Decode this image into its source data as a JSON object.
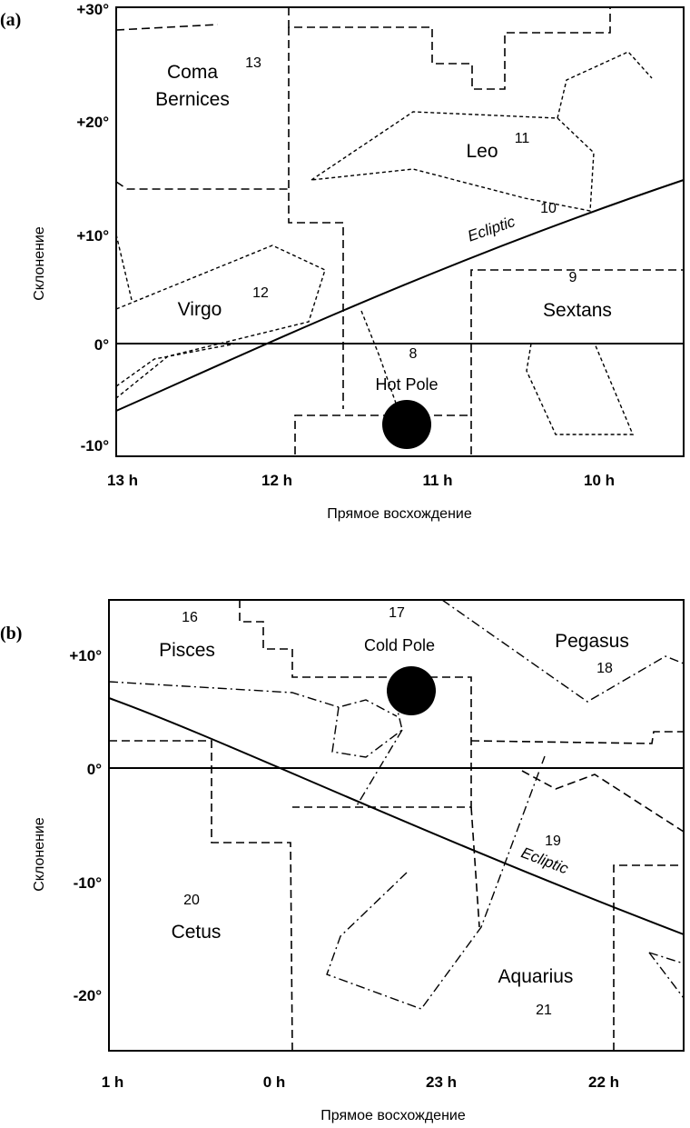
{
  "panel_a": {
    "letter": "(a)",
    "y_ticks": [
      "+30°",
      "+20°",
      "+10°",
      "0°",
      "-10°"
    ],
    "x_ticks": [
      "13 h",
      "12 h",
      "11 h",
      "10 h"
    ],
    "ylabel": "Склонение",
    "xlabel": "Прямое восхождение",
    "constellations": [
      "Coma",
      "Bernices",
      "Leo",
      "Virgo",
      "Sextans"
    ],
    "numbers": [
      "13",
      "11",
      "10",
      "9",
      "12",
      "8"
    ],
    "pole_label": "Hot Pole",
    "ecliptic_label": "Ecliptic"
  },
  "panel_b": {
    "letter": "(b)",
    "y_ticks": [
      "+10°",
      "0°",
      "-10°",
      "-20°"
    ],
    "x_ticks": [
      "1 h",
      "0 h",
      "23 h",
      "22 h"
    ],
    "ylabel": "Склонение",
    "xlabel": "Прямое восхождение",
    "constellations": [
      "Pisces",
      "Pegasus",
      "Cetus",
      "Aquarius"
    ],
    "numbers": [
      "16",
      "17",
      "18",
      "19",
      "20",
      "21"
    ],
    "pole_label": "Cold Pole",
    "ecliptic_label": "Ecliptic"
  }
}
